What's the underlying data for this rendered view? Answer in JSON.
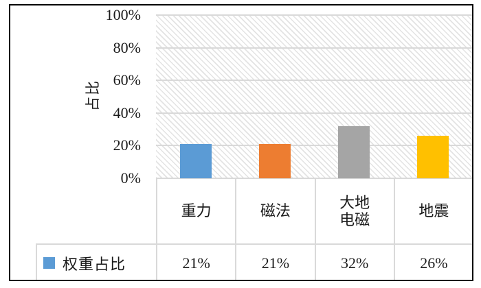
{
  "chart_data": {
    "type": "bar",
    "title": "",
    "categories": [
      "重力",
      "磁法",
      "大地\n电磁",
      "地震"
    ],
    "series": [
      {
        "name": "权重占比",
        "values": [
          21,
          21,
          32,
          26
        ],
        "value_labels": [
          "21%",
          "21%",
          "32%",
          "26%"
        ]
      }
    ],
    "xlabel": "",
    "ylabel": "占比",
    "ylim": [
      0,
      100
    ],
    "yticks": [
      "0%",
      "20%",
      "40%",
      "60%",
      "80%",
      "100%"
    ],
    "grid": true,
    "plot_background": "diagonal-hatch",
    "legend_position": "bottom-table",
    "colors": {
      "bars": [
        "#5B9BD5",
        "#ED7D31",
        "#A5A5A5",
        "#FFC000"
      ],
      "legend_swatch": "#5B9BD5",
      "gridline": "#D9D9D9",
      "table_border": "#D9D9D9",
      "frame_border": "#000000",
      "hatch_line": "#E3E3E3",
      "text": "#1A1A1A"
    }
  }
}
